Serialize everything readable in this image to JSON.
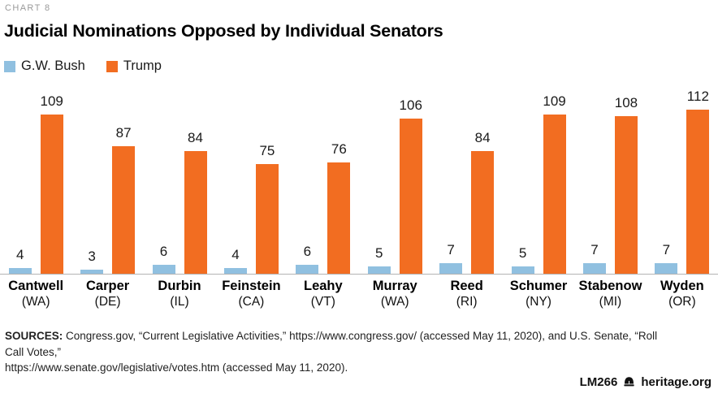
{
  "header": {
    "kicker": "CHART 8",
    "title": "Judicial Nominations Opposed by Individual Senators"
  },
  "chart_data": {
    "type": "bar",
    "title": "Judicial Nominations Opposed by Individual Senators",
    "categories": [
      "Cantwell",
      "Carper",
      "Durbin",
      "Feinstein",
      "Leahy",
      "Murray",
      "Reed",
      "Schumer",
      "Stabenow",
      "Wyden"
    ],
    "category_states": [
      "(WA)",
      "(DE)",
      "(IL)",
      "(CA)",
      "(VT)",
      "(WA)",
      "(RI)",
      "(NY)",
      "(MI)",
      "(OR)"
    ],
    "series": [
      {
        "name": "G.W. Bush",
        "color": "#90C0E0",
        "values": [
          4,
          3,
          6,
          4,
          6,
          5,
          7,
          5,
          7,
          7
        ]
      },
      {
        "name": "Trump",
        "color": "#F26D21",
        "values": [
          109,
          87,
          84,
          75,
          76,
          106,
          84,
          109,
          108,
          112
        ]
      }
    ],
    "xlabel": "",
    "ylabel": "",
    "ylim": [
      0,
      125
    ],
    "grid": false,
    "legend_position": "top-left",
    "data_labels": true,
    "axis_line_color": "#b3b3b3"
  },
  "sources": {
    "label": "SOURCES:",
    "line1": "Congress.gov, “Current Legislative Activities,” https://www.congress.gov/ (accessed May 11, 2020), and U.S. Senate, “Roll Call Votes,”",
    "line2": "https://www.senate.gov/legislative/votes.htm (accessed May 11, 2020)."
  },
  "footer": {
    "code": "LM266",
    "site": "heritage.org",
    "icon": "liberty-bell-icon"
  }
}
